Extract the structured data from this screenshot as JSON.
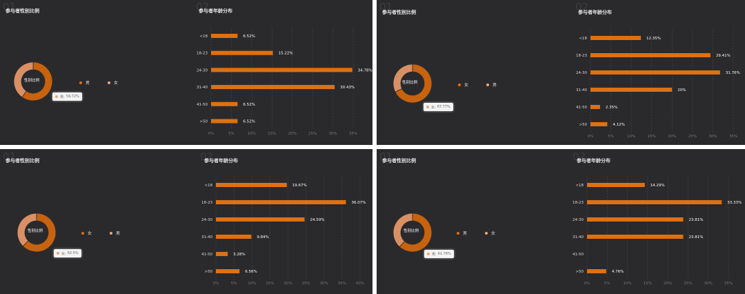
{
  "colors": {
    "bar": "#e07010",
    "donut_main": "#c7620f",
    "donut_secondary": "#d99064",
    "legend_male": "#e07010",
    "legend_female": "#f0a878",
    "grid": "#4a4a4d",
    "axis_text": "#777777",
    "label_text": "#dddddd"
  },
  "panels": [
    {
      "pie_ghost": "01",
      "bar_ghost": "02",
      "pie_title": "参与者性别比例",
      "bar_title": "参与者年龄分布",
      "donut_center": "性别比例",
      "legend": [
        "男",
        "女"
      ],
      "tooltip": {
        "label": "男:",
        "value": "59.72%"
      }
    },
    {
      "pie_ghost": "01",
      "bar_ghost": "02",
      "pie_title": "参与者性别比例",
      "bar_title": "参与者年龄分布",
      "donut_center": "性别比例",
      "legend": [
        "女",
        "男"
      ],
      "tooltip": {
        "label": "女:",
        "value": "67.77%"
      }
    },
    {
      "pie_ghost": "01",
      "bar_ghost": "02",
      "pie_title": "参与者性别比例",
      "bar_title": "参与者年龄分布",
      "donut_center": "性别比例",
      "legend": [
        "女",
        "男"
      ],
      "tooltip": {
        "label": "女:",
        "value": "62.5%"
      }
    },
    {
      "pie_ghost": "01",
      "bar_ghost": "02",
      "pie_title": "参与者性别比例",
      "bar_title": "参与者年龄分布",
      "donut_center": "性别比例",
      "legend": [
        "男",
        "女"
      ],
      "tooltip": {
        "label": "男:",
        "value": "61.76%"
      }
    }
  ],
  "chart_data": [
    {
      "type": "pie",
      "categories": [
        "男",
        "女"
      ],
      "values": [
        59.72,
        40.28
      ]
    },
    {
      "type": "bar",
      "orientation": "horizontal",
      "categories": [
        "<18",
        "18-23",
        "24-30",
        "31-40",
        "41-50",
        ">50"
      ],
      "values": [
        6.52,
        15.22,
        34.78,
        30.43,
        6.52,
        6.52
      ],
      "value_labels": [
        "6.52%",
        "15.22%",
        "34.78%",
        "30.43%",
        "6.52%",
        "6.52%"
      ],
      "xticks": [
        "0%",
        "5%",
        "10%",
        "15%",
        "20%",
        "25%",
        "30%",
        "35%"
      ],
      "xlim": [
        0,
        35
      ],
      "grid": true
    },
    {
      "type": "pie",
      "categories": [
        "女",
        "男"
      ],
      "values": [
        67.77,
        32.23
      ]
    },
    {
      "type": "bar",
      "orientation": "horizontal",
      "categories": [
        "<18",
        "18-23",
        "24-30",
        "31-40",
        "41-50",
        ">50"
      ],
      "values": [
        12.35,
        29.41,
        31.76,
        20,
        2.35,
        4.12
      ],
      "value_labels": [
        "12.35%",
        "29.41%",
        "31.76%",
        "20%",
        "2.35%",
        "4.12%"
      ],
      "xticks": [
        "0%",
        "5%",
        "10%",
        "15%",
        "20%",
        "25%",
        "30%",
        "35%"
      ],
      "xlim": [
        0,
        35
      ],
      "grid": true
    },
    {
      "type": "pie",
      "categories": [
        "女",
        "男"
      ],
      "values": [
        62.5,
        37.5
      ]
    },
    {
      "type": "bar",
      "orientation": "horizontal",
      "categories": [
        "<18",
        "18-23",
        "24-30",
        "31-40",
        "41-50",
        ">50"
      ],
      "values": [
        19.67,
        36.07,
        24.59,
        9.84,
        3.28,
        6.56
      ],
      "value_labels": [
        "19.67%",
        "36.07%",
        "24.59%",
        "9.84%",
        "3.28%",
        "6.56%"
      ],
      "xticks": [
        "0%",
        "5%",
        "10%",
        "15%",
        "20%",
        "25%",
        "30%",
        "35%",
        "40%"
      ],
      "xlim": [
        0,
        40
      ],
      "grid": true
    },
    {
      "type": "pie",
      "categories": [
        "男",
        "女"
      ],
      "values": [
        61.76,
        38.24
      ]
    },
    {
      "type": "bar",
      "orientation": "horizontal",
      "categories": [
        "<18",
        "18-23",
        "24-30",
        "31-40",
        "41-50",
        ">50"
      ],
      "values": [
        14.29,
        33.33,
        23.81,
        23.81,
        0,
        4.76
      ],
      "value_labels": [
        "14.29%",
        "33.33%",
        "23.81%",
        "23.81%",
        "",
        "4.76%"
      ],
      "xticks": [
        "0%",
        "5%",
        "10%",
        "15%",
        "20%",
        "25%",
        "30%",
        "35%"
      ],
      "xlim": [
        0,
        35
      ],
      "grid": true
    }
  ]
}
